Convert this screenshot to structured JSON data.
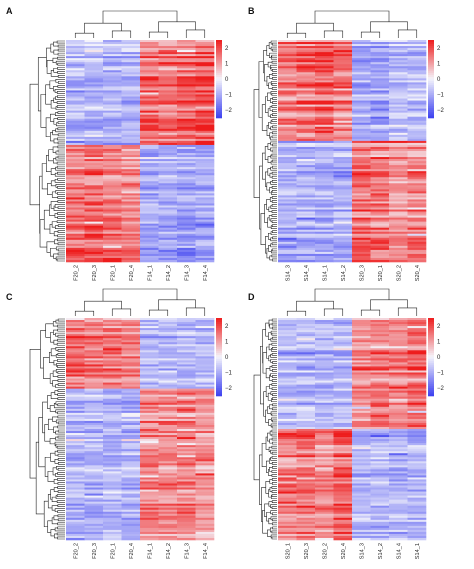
{
  "color_scale": {
    "low": "#3a3ef0",
    "mid": "#f4f4fb",
    "high": "#ee1c1c",
    "ticks": [
      "2",
      "1",
      "0",
      "−1",
      "−2"
    ]
  },
  "chart_data": [
    {
      "type": "heatmap",
      "panel": "A",
      "columns": [
        "F20_2",
        "F20_3",
        "F20_1",
        "F20_4",
        "F14_1",
        "F14_2",
        "F14_3",
        "F14_4"
      ],
      "row_groups": [
        {
          "fraction": 0.47,
          "values": [
            -0.7,
            -0.7,
            -0.7,
            -0.7,
            1.3,
            1.2,
            1.4,
            1.5
          ]
        },
        {
          "fraction": 0.53,
          "values": [
            1.1,
            1.3,
            1.1,
            1.0,
            -0.8,
            -0.8,
            -0.9,
            -0.8
          ]
        }
      ],
      "scale_range": [
        -2,
        2
      ]
    },
    {
      "type": "heatmap",
      "panel": "B",
      "columns": [
        "S14_3",
        "S14_4",
        "S14_1",
        "S14_2",
        "S20_3",
        "S20_1",
        "S20_2",
        "S20_4"
      ],
      "row_groups": [
        {
          "fraction": 0.45,
          "values": [
            1.2,
            1.3,
            1.5,
            1.2,
            -0.8,
            -0.9,
            -0.6,
            -0.7
          ]
        },
        {
          "fraction": 0.55,
          "values": [
            -0.8,
            -0.8,
            -0.8,
            -0.8,
            1.3,
            1.2,
            0.9,
            1.1
          ]
        }
      ],
      "scale_range": [
        -2,
        2
      ]
    },
    {
      "type": "heatmap",
      "panel": "C",
      "columns": [
        "F20_2",
        "F20_3",
        "F20_1",
        "F20_4",
        "F14_1",
        "F14_2",
        "F14_3",
        "F14_4"
      ],
      "row_groups": [
        {
          "fraction": 0.32,
          "values": [
            1.4,
            1.2,
            1.3,
            1.1,
            -0.7,
            -0.7,
            -0.7,
            -0.7
          ]
        },
        {
          "fraction": 0.68,
          "values": [
            -0.7,
            -0.7,
            -0.7,
            -0.7,
            1.0,
            1.1,
            1.1,
            0.9
          ]
        }
      ],
      "scale_range": [
        -2,
        2
      ]
    },
    {
      "type": "heatmap",
      "panel": "D",
      "columns": [
        "S20_1",
        "S20_3",
        "S20_2",
        "S20_4",
        "S14_3",
        "S14_2",
        "S14_4",
        "S14_1"
      ],
      "row_groups": [
        {
          "fraction": 0.5,
          "values": [
            -0.7,
            -0.7,
            -0.7,
            -0.7,
            1.0,
            1.2,
            1.1,
            1.3
          ]
        },
        {
          "fraction": 0.5,
          "values": [
            1.1,
            1.2,
            1.0,
            1.3,
            -0.7,
            -0.7,
            -0.7,
            -0.7
          ]
        }
      ],
      "scale_range": [
        -2,
        2
      ]
    }
  ]
}
